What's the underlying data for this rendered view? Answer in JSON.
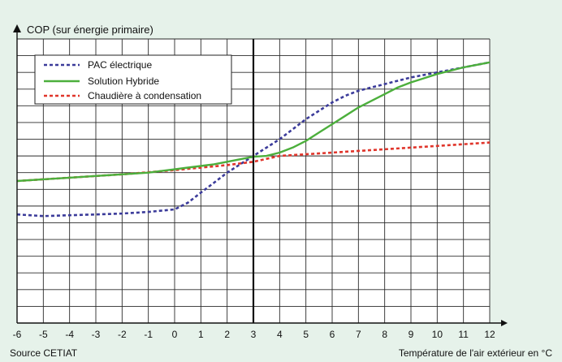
{
  "chart_data": {
    "type": "line",
    "ylabel": "COP (sur énergie primaire)",
    "xlabel": "Température de l'air extérieur en °C",
    "source": "Source CETIAT",
    "x_ticks": [
      -6,
      -5,
      -4,
      -3,
      -2,
      -1,
      0,
      1,
      2,
      3,
      4,
      5,
      6,
      7,
      8,
      9,
      10,
      11,
      12
    ],
    "xlim": [
      -6,
      12
    ],
    "ylim": [
      0,
      17
    ],
    "grid": true,
    "legend_position": "top-left",
    "series": [
      {
        "name": "PAC électrique",
        "color": "#3b3b9a",
        "style": "dotted",
        "x": [
          -6,
          -5,
          -4,
          -3,
          -2,
          -1,
          0,
          0.5,
          1,
          1.5,
          2,
          2.5,
          3,
          3.5,
          4,
          4.5,
          5,
          5.5,
          6,
          6.5,
          7,
          7.5,
          8,
          8.5,
          9,
          9.5,
          10,
          10.5,
          11,
          11.5,
          12
        ],
        "values": [
          6.5,
          6.4,
          6.45,
          6.5,
          6.55,
          6.65,
          6.8,
          7.2,
          7.8,
          8.4,
          9.0,
          9.5,
          10.0,
          10.5,
          11.0,
          11.6,
          12.2,
          12.7,
          13.2,
          13.6,
          13.9,
          14.1,
          14.3,
          14.5,
          14.7,
          14.85,
          15.0,
          15.15,
          15.3,
          15.45,
          15.6
        ]
      },
      {
        "name": "Solution Hybride",
        "color": "#4caf3c",
        "style": "solid",
        "x": [
          -6,
          -5,
          -4,
          -3,
          -2,
          -1,
          0,
          0.5,
          1,
          1.5,
          2,
          2.5,
          3,
          3.5,
          4,
          4.5,
          5,
          5.5,
          6,
          6.5,
          7,
          7.5,
          8,
          8.5,
          9,
          9.5,
          10,
          10.5,
          11,
          11.5,
          12
        ],
        "values": [
          8.5,
          8.6,
          8.7,
          8.8,
          8.9,
          9.0,
          9.2,
          9.3,
          9.4,
          9.5,
          9.65,
          9.8,
          9.95,
          10.0,
          10.2,
          10.5,
          10.9,
          11.4,
          11.9,
          12.4,
          12.9,
          13.3,
          13.7,
          14.1,
          14.4,
          14.65,
          14.9,
          15.1,
          15.3,
          15.45,
          15.6
        ]
      },
      {
        "name": "Chaudière à condensation",
        "color": "#e0352b",
        "style": "dotted",
        "x": [
          -6,
          -4,
          -2,
          0,
          2,
          3,
          4,
          6,
          8,
          10,
          12
        ],
        "values": [
          8.5,
          8.7,
          8.9,
          9.15,
          9.45,
          9.65,
          10.0,
          10.2,
          10.4,
          10.6,
          10.8
        ]
      }
    ]
  }
}
